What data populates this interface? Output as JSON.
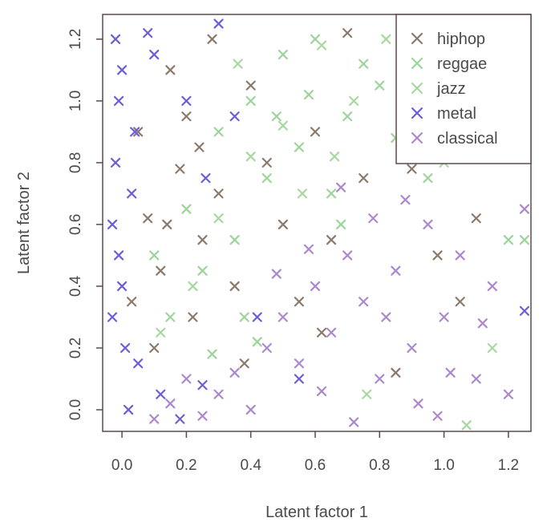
{
  "chart_data": {
    "type": "scatter",
    "xlabel": "Latent factor 1",
    "ylabel": "Latent factor 2",
    "xlim": [
      -0.06,
      1.27
    ],
    "ylim": [
      -0.07,
      1.28
    ],
    "x_ticks": [
      "0.0",
      "0.2",
      "0.4",
      "0.6",
      "0.8",
      "1.0",
      "1.2"
    ],
    "y_ticks": [
      "0.0",
      "0.2",
      "0.4",
      "0.6",
      "0.8",
      "1.0",
      "1.2"
    ],
    "marker": "x",
    "legend_position": "top-right",
    "grid": false,
    "series": [
      {
        "name": "hiphop",
        "color": "#8b7a6b",
        "points": [
          [
            0.08,
            0.62
          ],
          [
            0.12,
            0.45
          ],
          [
            0.18,
            0.78
          ],
          [
            0.22,
            0.3
          ],
          [
            0.05,
            0.9
          ],
          [
            0.15,
            1.1
          ],
          [
            0.25,
            0.55
          ],
          [
            0.3,
            0.7
          ],
          [
            0.1,
            0.2
          ],
          [
            0.2,
            0.95
          ],
          [
            0.35,
            0.4
          ],
          [
            0.4,
            1.05
          ],
          [
            0.45,
            0.8
          ],
          [
            0.5,
            0.6
          ],
          [
            0.28,
            1.2
          ],
          [
            0.6,
            0.9
          ],
          [
            0.7,
            1.22
          ],
          [
            0.75,
            0.75
          ],
          [
            0.55,
            0.35
          ],
          [
            0.62,
            0.25
          ],
          [
            0.9,
            0.78
          ],
          [
            0.98,
            0.5
          ],
          [
            1.1,
            0.62
          ],
          [
            1.05,
            0.35
          ],
          [
            0.85,
            0.12
          ],
          [
            0.65,
            0.55
          ],
          [
            0.38,
            0.15
          ],
          [
            0.03,
            0.35
          ],
          [
            0.14,
            0.6
          ],
          [
            0.24,
            0.85
          ]
        ]
      },
      {
        "name": "reggae",
        "color": "#9dd49a",
        "points": [
          [
            0.3,
            0.9
          ],
          [
            0.4,
            1.0
          ],
          [
            0.5,
            1.15
          ],
          [
            0.6,
            1.2
          ],
          [
            0.7,
            0.95
          ],
          [
            0.8,
            1.05
          ],
          [
            0.45,
            0.75
          ],
          [
            0.35,
            0.55
          ],
          [
            0.25,
            0.45
          ],
          [
            0.15,
            0.3
          ],
          [
            0.55,
            0.85
          ],
          [
            0.65,
            0.7
          ],
          [
            0.75,
            1.12
          ],
          [
            0.85,
            0.88
          ],
          [
            0.2,
            0.65
          ],
          [
            0.1,
            0.5
          ],
          [
            0.38,
            0.3
          ],
          [
            0.48,
            0.95
          ],
          [
            0.58,
            1.02
          ],
          [
            0.68,
            0.6
          ],
          [
            1.2,
            0.55
          ],
          [
            1.25,
            0.55
          ],
          [
            0.95,
            0.75
          ],
          [
            0.42,
            0.22
          ],
          [
            0.28,
            0.18
          ]
        ]
      },
      {
        "name": "jazz",
        "color": "#a8d8a0",
        "points": [
          [
            0.62,
            1.18
          ],
          [
            0.72,
            1.0
          ],
          [
            0.82,
            1.2
          ],
          [
            0.5,
            0.92
          ],
          [
            0.4,
            0.82
          ],
          [
            0.3,
            0.62
          ],
          [
            0.22,
            0.4
          ],
          [
            0.12,
            0.25
          ],
          [
            0.66,
            0.82
          ],
          [
            0.92,
            1.1
          ],
          [
            0.36,
            1.12
          ],
          [
            0.56,
            0.7
          ],
          [
            1.0,
            0.8
          ],
          [
            1.15,
            0.2
          ],
          [
            1.07,
            -0.05
          ],
          [
            0.76,
            0.05
          ]
        ]
      },
      {
        "name": "metal",
        "color": "#6a5fd6",
        "points": [
          [
            -0.03,
            0.6
          ],
          [
            -0.02,
            0.8
          ],
          [
            -0.01,
            1.0
          ],
          [
            -0.02,
            1.2
          ],
          [
            0.0,
            0.4
          ],
          [
            0.01,
            0.2
          ],
          [
            0.02,
            0.0
          ],
          [
            -0.03,
            0.3
          ],
          [
            0.03,
            0.7
          ],
          [
            0.04,
            0.9
          ],
          [
            0.0,
            1.1
          ],
          [
            -0.01,
            0.5
          ],
          [
            0.05,
            0.15
          ],
          [
            0.08,
            1.22
          ],
          [
            0.1,
            1.15
          ],
          [
            0.12,
            0.05
          ],
          [
            0.18,
            -0.03
          ],
          [
            0.25,
            0.08
          ],
          [
            0.3,
            1.25
          ],
          [
            0.26,
            0.75
          ],
          [
            0.2,
            1.0
          ],
          [
            0.35,
            0.95
          ],
          [
            0.42,
            0.3
          ],
          [
            0.55,
            0.1
          ],
          [
            1.25,
            0.32
          ]
        ]
      },
      {
        "name": "classical",
        "color": "#ac88cc",
        "points": [
          [
            0.1,
            -0.03
          ],
          [
            0.15,
            0.02
          ],
          [
            0.2,
            0.1
          ],
          [
            0.25,
            -0.02
          ],
          [
            0.3,
            0.05
          ],
          [
            0.35,
            0.12
          ],
          [
            0.4,
            0.0
          ],
          [
            0.45,
            0.2
          ],
          [
            0.5,
            0.3
          ],
          [
            0.55,
            0.15
          ],
          [
            0.6,
            0.4
          ],
          [
            0.65,
            0.25
          ],
          [
            0.7,
            0.5
          ],
          [
            0.75,
            0.35
          ],
          [
            0.8,
            0.1
          ],
          [
            0.85,
            0.45
          ],
          [
            0.9,
            0.2
          ],
          [
            0.95,
            0.6
          ],
          [
            1.0,
            0.3
          ],
          [
            1.05,
            0.5
          ],
          [
            1.1,
            0.1
          ],
          [
            1.15,
            0.4
          ],
          [
            1.2,
            0.05
          ],
          [
            1.25,
            0.65
          ],
          [
            0.78,
            0.62
          ],
          [
            0.68,
            0.72
          ],
          [
            0.88,
            0.68
          ],
          [
            0.58,
            0.52
          ],
          [
            0.48,
            0.44
          ],
          [
            0.98,
            -0.02
          ],
          [
            1.12,
            0.28
          ],
          [
            0.72,
            -0.04
          ],
          [
            0.82,
            0.3
          ],
          [
            0.92,
            0.02
          ],
          [
            1.02,
            0.12
          ],
          [
            0.62,
            0.06
          ]
        ]
      }
    ]
  }
}
